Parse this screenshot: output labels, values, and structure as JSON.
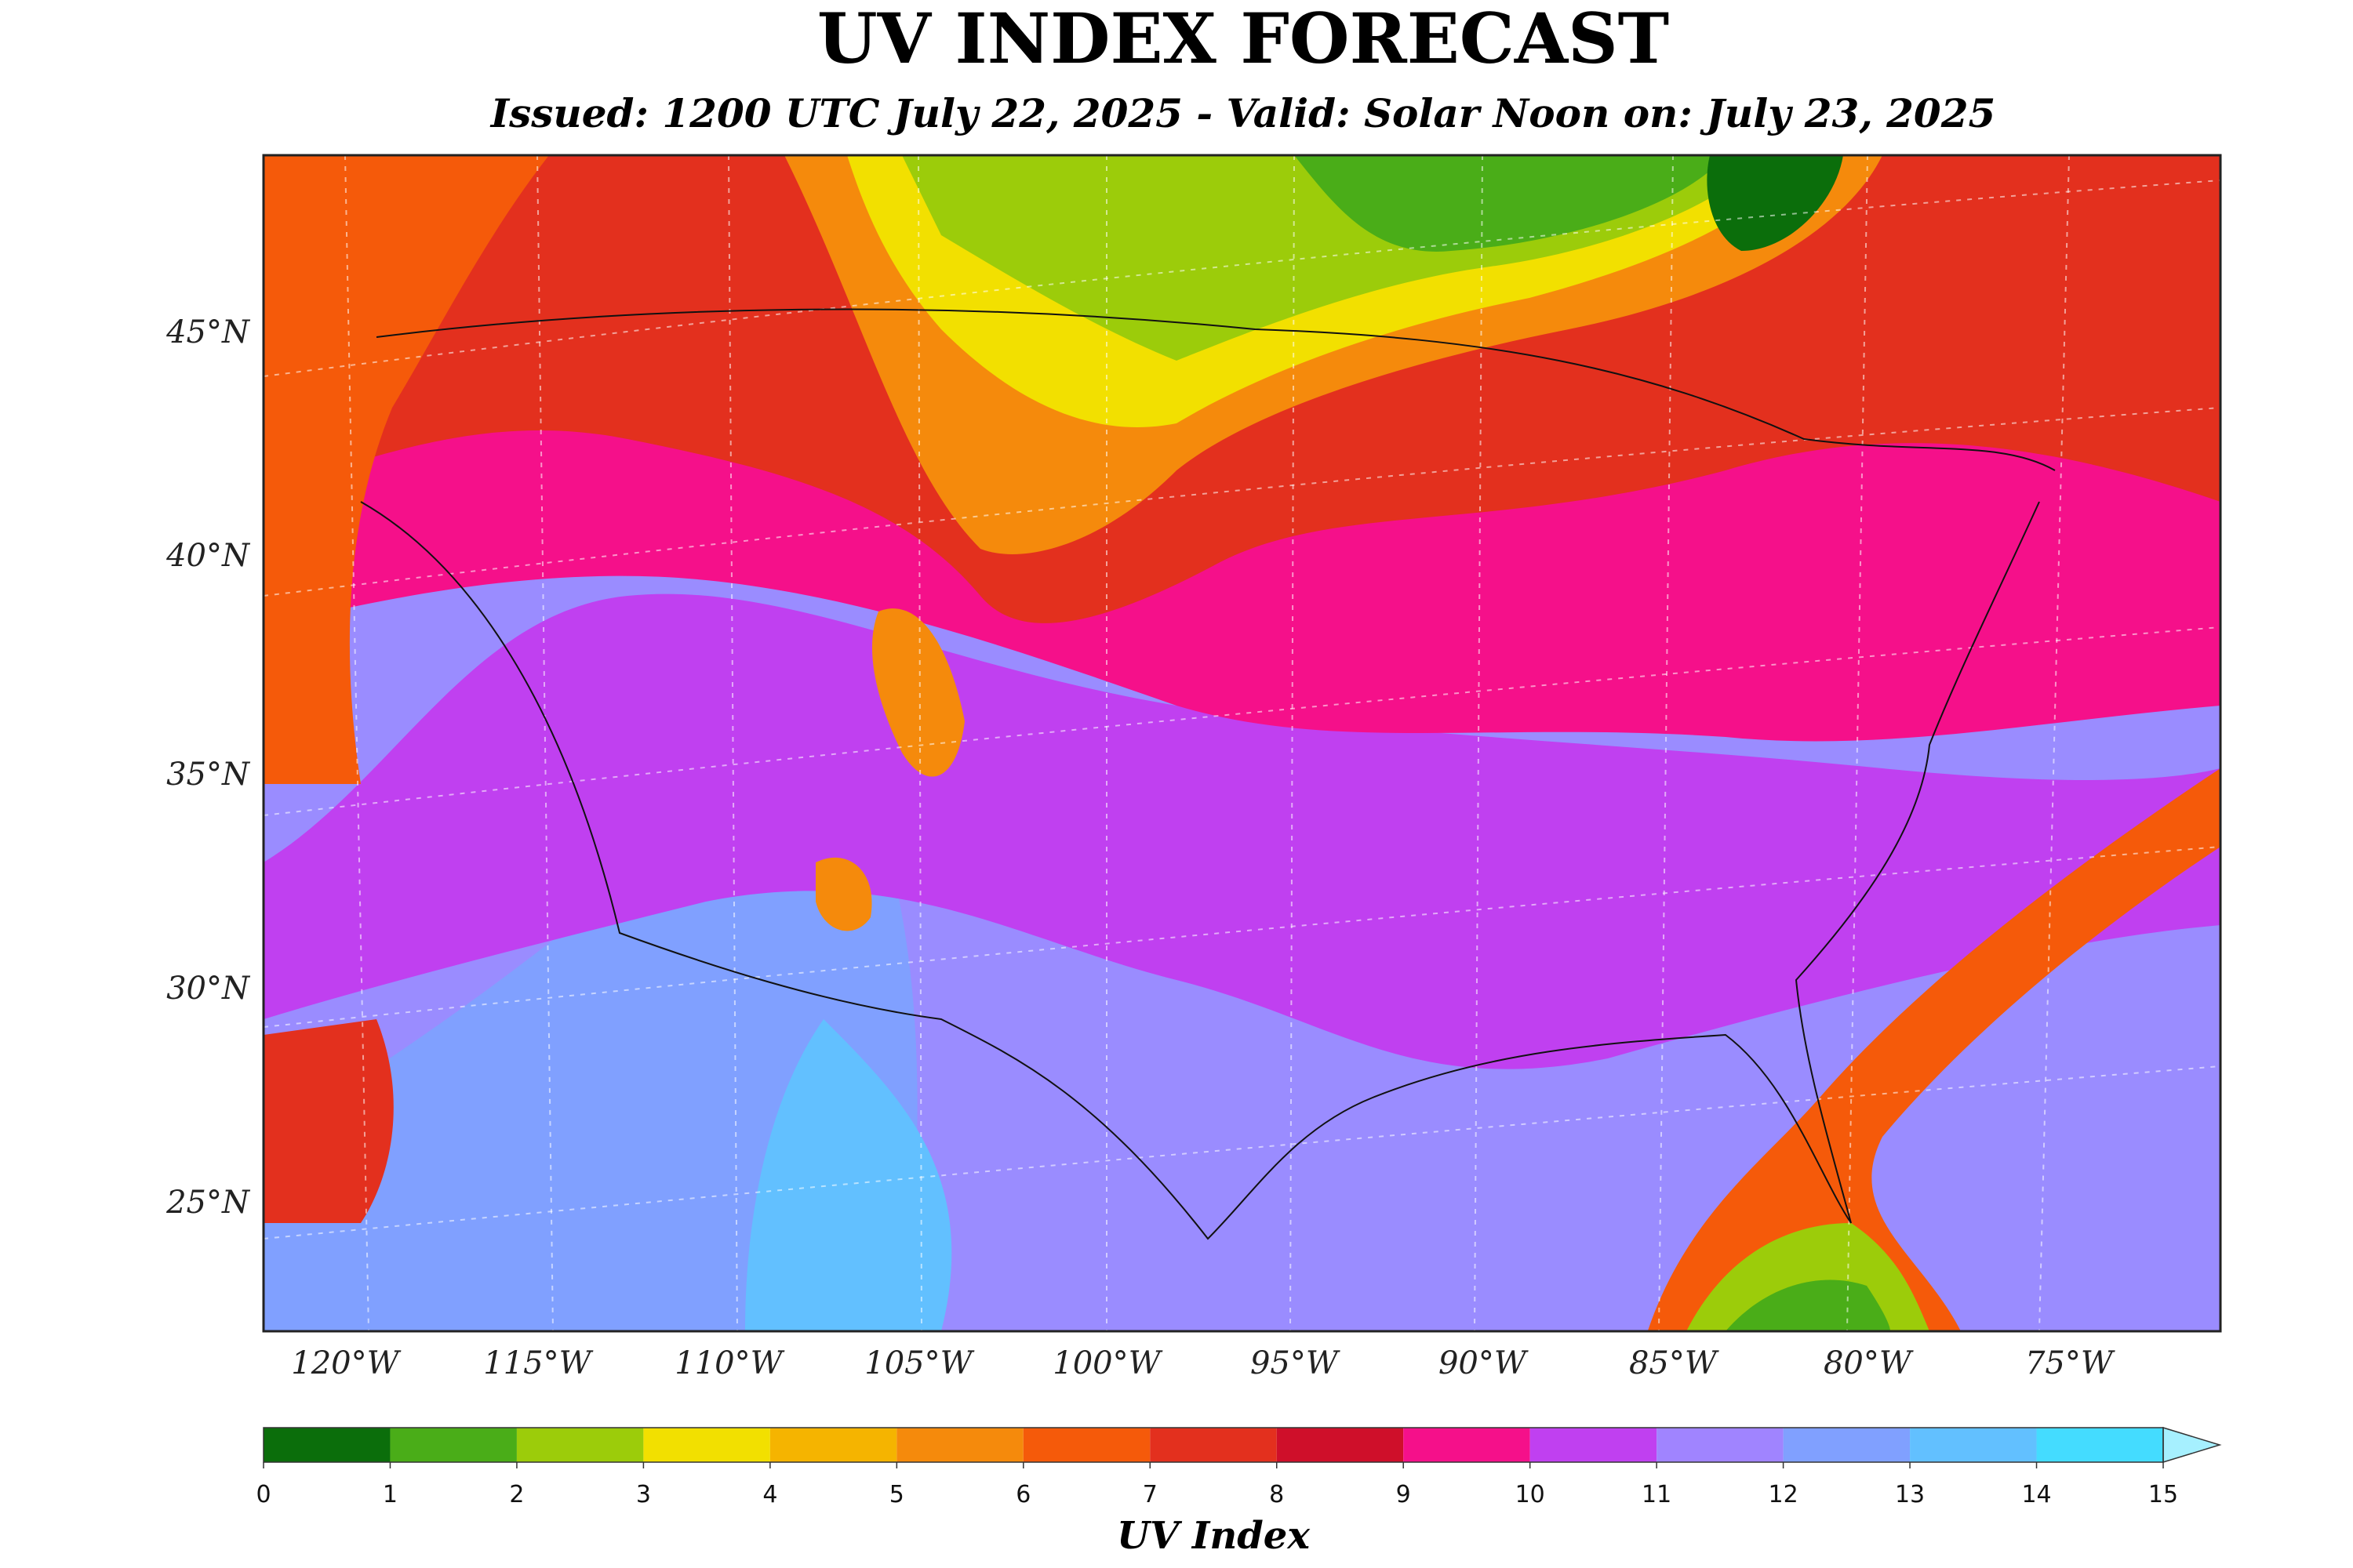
{
  "title": "UV INDEX FORECAST",
  "subtitle": "Issued: 1200 UTC July 22, 2025 - Valid: Solar Noon on: July 23, 2025",
  "map": {
    "lat_labels": [
      "45°N",
      "40°N",
      "35°N",
      "30°N",
      "25°N"
    ],
    "lon_labels": [
      "120°W",
      "115°W",
      "110°W",
      "105°W",
      "100°W",
      "95°W",
      "90°W",
      "85°W",
      "80°W",
      "75°W"
    ]
  },
  "colorbar": {
    "label": "UV Index",
    "ticks": [
      0,
      1,
      2,
      3,
      4,
      5,
      6,
      7,
      8,
      9,
      10,
      11,
      12,
      13,
      14,
      15
    ],
    "colors": [
      "#0b6e0b",
      "#4aad18",
      "#9ccc0a",
      "#f2e000",
      "#f5b400",
      "#f58a0c",
      "#f55a0a",
      "#e3301e",
      "#cf0f2a",
      "#f5108a",
      "#c040f0",
      "#a084ff",
      "#80a0ff",
      "#62c0ff",
      "#44dcff"
    ],
    "extend_color": "#a6f0ff"
  }
}
